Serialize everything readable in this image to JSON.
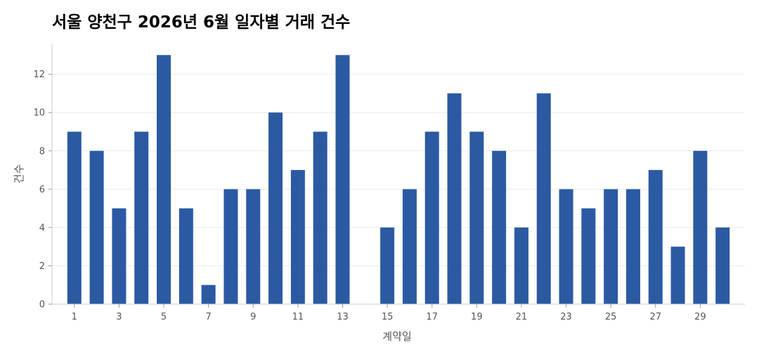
{
  "chart_data": {
    "type": "bar",
    "title": "서울 양천구 2026년 6월 일자별 거래 건수",
    "xlabel": "계약일",
    "ylabel": "건수",
    "x": [
      1,
      2,
      3,
      4,
      5,
      6,
      7,
      8,
      9,
      10,
      11,
      12,
      13,
      14,
      15,
      16,
      17,
      18,
      19,
      20,
      21,
      22,
      23,
      24,
      25,
      26,
      27,
      28,
      29,
      30
    ],
    "values": [
      9,
      8,
      5,
      9,
      13,
      5,
      1,
      6,
      6,
      10,
      7,
      9,
      13,
      0,
      4,
      6,
      9,
      11,
      9,
      8,
      4,
      11,
      6,
      5,
      6,
      6,
      7,
      3,
      8,
      4
    ],
    "xticks": [
      1,
      3,
      5,
      7,
      9,
      11,
      13,
      15,
      17,
      19,
      21,
      23,
      25,
      27,
      29
    ],
    "yticks": [
      0,
      2,
      4,
      6,
      8,
      10,
      12
    ],
    "ylim": [
      0,
      13.6
    ],
    "xlim": [
      0,
      31
    ],
    "grid": true,
    "bar_color": "#2b5aa3"
  }
}
